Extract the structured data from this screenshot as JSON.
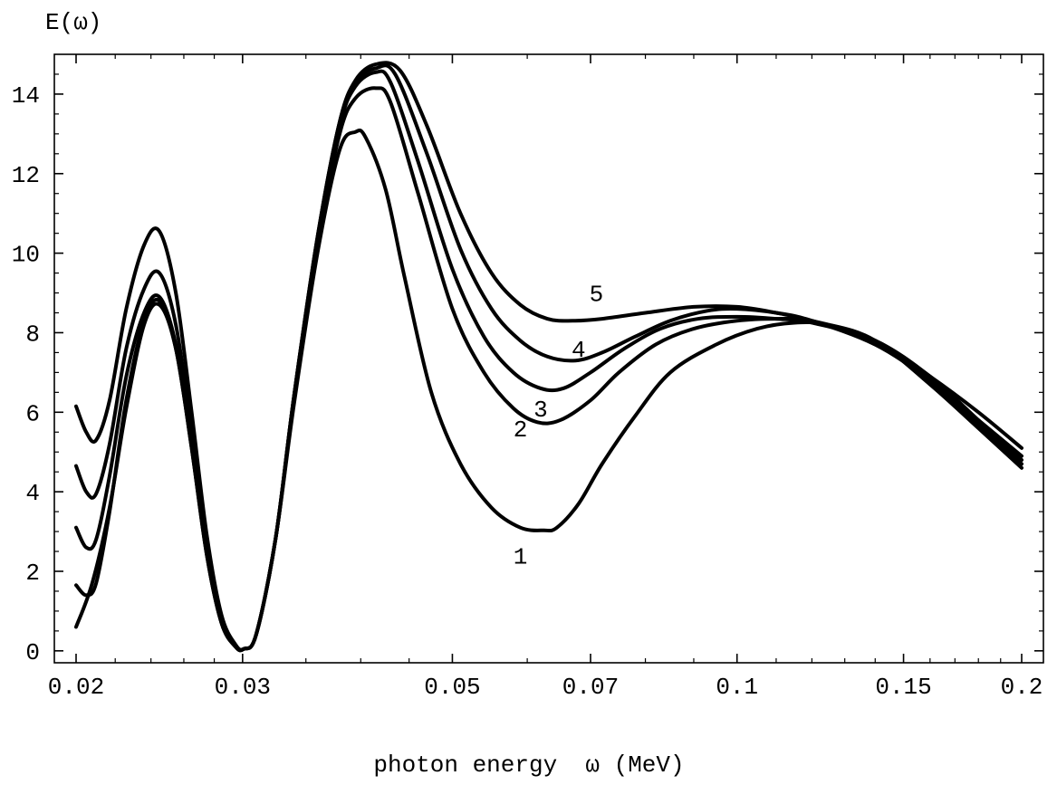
{
  "chart_data": {
    "type": "line",
    "ylabel": "E(ω)",
    "xlabel": "photon energy  ω (MeV)",
    "xscale": "log",
    "xlim": [
      0.02,
      0.2
    ],
    "ylim": [
      -0.3,
      15.0
    ],
    "grid": false,
    "x_ticks": [
      {
        "value": 0.02,
        "label": "0.02"
      },
      {
        "value": 0.03,
        "label": "0.03"
      },
      {
        "value": 0.05,
        "label": "0.05"
      },
      {
        "value": 0.07,
        "label": "0.07"
      },
      {
        "value": 0.1,
        "label": "0.1"
      },
      {
        "value": 0.15,
        "label": "0.15"
      },
      {
        "value": 0.2,
        "label": "0.2"
      }
    ],
    "y_ticks": [
      {
        "value": 0,
        "label": "0"
      },
      {
        "value": 2,
        "label": "2"
      },
      {
        "value": 4,
        "label": "4"
      },
      {
        "value": 6,
        "label": "6"
      },
      {
        "value": 8,
        "label": "8"
      },
      {
        "value": 10,
        "label": "10"
      },
      {
        "value": 12,
        "label": "12"
      },
      {
        "value": 14,
        "label": "14"
      }
    ],
    "curve_labels": [
      {
        "text": "1",
        "x": 0.059,
        "y": 2.4
      },
      {
        "text": "2",
        "x": 0.059,
        "y": 5.6
      },
      {
        "text": "3",
        "x": 0.062,
        "y": 6.1
      },
      {
        "text": "4",
        "x": 0.068,
        "y": 7.6
      },
      {
        "text": "5",
        "x": 0.071,
        "y": 9.0
      }
    ],
    "series": [
      {
        "x": [
          0.02,
          0.0208,
          0.0217,
          0.0226,
          0.0236,
          0.0245,
          0.0255,
          0.0265,
          0.0275,
          0.0285,
          0.0295,
          0.0301,
          0.031,
          0.0325,
          0.034,
          0.036,
          0.038,
          0.0395,
          0.0405,
          0.0425,
          0.0445,
          0.0475,
          0.051,
          0.055,
          0.059,
          0.0625,
          0.0645,
          0.068,
          0.072,
          0.078,
          0.085,
          0.095,
          0.105,
          0.115,
          0.125,
          0.14,
          0.16,
          0.18,
          0.2
        ],
        "y": [
          0.6,
          1.7,
          3.6,
          6.1,
          8.2,
          8.7,
          7.6,
          5.1,
          2.4,
          0.7,
          0.1,
          0.05,
          0.4,
          2.8,
          6.2,
          10.0,
          12.6,
          13.05,
          12.9,
          11.6,
          9.4,
          6.5,
          4.7,
          3.6,
          3.1,
          3.03,
          3.1,
          3.7,
          4.7,
          5.9,
          7.0,
          7.7,
          8.1,
          8.25,
          8.2,
          7.8,
          6.7,
          5.6,
          4.6
        ]
      },
      {
        "x": [
          0.02,
          0.0205,
          0.021,
          0.0217,
          0.0226,
          0.0236,
          0.0245,
          0.0255,
          0.0265,
          0.0275,
          0.0285,
          0.0295,
          0.0301,
          0.031,
          0.0325,
          0.034,
          0.036,
          0.038,
          0.0395,
          0.0415,
          0.043,
          0.046,
          0.05,
          0.054,
          0.058,
          0.0615,
          0.065,
          0.07,
          0.075,
          0.082,
          0.09,
          0.1,
          0.11,
          0.12,
          0.14,
          0.16,
          0.18,
          0.2
        ],
        "y": [
          1.65,
          1.4,
          1.7,
          3.5,
          6.3,
          8.3,
          8.8,
          7.6,
          5.1,
          2.4,
          0.7,
          0.1,
          0.05,
          0.4,
          2.8,
          6.3,
          10.2,
          13.0,
          13.9,
          14.15,
          13.8,
          11.5,
          8.6,
          7.0,
          6.1,
          5.75,
          5.8,
          6.3,
          7.0,
          7.7,
          8.1,
          8.3,
          8.35,
          8.3,
          7.8,
          6.8,
          5.7,
          4.7
        ]
      },
      {
        "x": [
          0.02,
          0.0205,
          0.021,
          0.0217,
          0.0226,
          0.0236,
          0.0245,
          0.0255,
          0.0265,
          0.0275,
          0.0285,
          0.0295,
          0.0301,
          0.031,
          0.0325,
          0.034,
          0.036,
          0.038,
          0.0395,
          0.0415,
          0.043,
          0.046,
          0.05,
          0.054,
          0.058,
          0.062,
          0.0655,
          0.07,
          0.076,
          0.083,
          0.091,
          0.1,
          0.11,
          0.12,
          0.14,
          0.16,
          0.18,
          0.2
        ],
        "y": [
          3.1,
          2.6,
          2.8,
          4.4,
          6.9,
          8.5,
          8.9,
          7.7,
          5.2,
          2.5,
          0.7,
          0.1,
          0.05,
          0.4,
          2.8,
          6.4,
          10.3,
          13.2,
          14.2,
          14.55,
          14.3,
          12.3,
          9.6,
          7.9,
          7.0,
          6.6,
          6.6,
          7.0,
          7.6,
          8.1,
          8.35,
          8.4,
          8.35,
          8.25,
          7.8,
          6.9,
          5.8,
          4.8
        ]
      },
      {
        "x": [
          0.02,
          0.0205,
          0.021,
          0.0217,
          0.0226,
          0.0236,
          0.0245,
          0.0255,
          0.0265,
          0.0275,
          0.0285,
          0.0295,
          0.0301,
          0.031,
          0.0325,
          0.034,
          0.036,
          0.038,
          0.0395,
          0.0415,
          0.0435,
          0.047,
          0.051,
          0.055,
          0.059,
          0.063,
          0.0675,
          0.072,
          0.078,
          0.085,
          0.093,
          0.1,
          0.11,
          0.12,
          0.14,
          0.16,
          0.18,
          0.2
        ],
        "y": [
          4.65,
          4.0,
          3.95,
          5.2,
          7.6,
          9.1,
          9.5,
          8.2,
          5.5,
          2.6,
          0.8,
          0.1,
          0.05,
          0.4,
          2.8,
          6.4,
          10.4,
          13.3,
          14.3,
          14.65,
          14.5,
          12.5,
          10.1,
          8.6,
          7.8,
          7.4,
          7.3,
          7.5,
          7.9,
          8.3,
          8.55,
          8.6,
          8.5,
          8.3,
          7.7,
          6.8,
          5.8,
          4.9
        ]
      },
      {
        "x": [
          0.02,
          0.0205,
          0.021,
          0.0217,
          0.0226,
          0.0236,
          0.0245,
          0.0255,
          0.0265,
          0.0275,
          0.0285,
          0.0295,
          0.0301,
          0.031,
          0.0325,
          0.034,
          0.036,
          0.038,
          0.0395,
          0.0415,
          0.044,
          0.047,
          0.051,
          0.055,
          0.059,
          0.063,
          0.067,
          0.072,
          0.08,
          0.09,
          0.1,
          0.11,
          0.12,
          0.14,
          0.16,
          0.18,
          0.2
        ],
        "y": [
          6.15,
          5.5,
          5.3,
          6.3,
          8.6,
          10.2,
          10.55,
          9.0,
          6.0,
          2.9,
          0.9,
          0.15,
          0.05,
          0.4,
          2.8,
          6.4,
          10.4,
          13.3,
          14.35,
          14.75,
          14.6,
          13.2,
          11.0,
          9.5,
          8.7,
          8.35,
          8.3,
          8.35,
          8.5,
          8.65,
          8.65,
          8.5,
          8.3,
          7.8,
          6.9,
          6.0,
          5.1
        ]
      }
    ]
  }
}
